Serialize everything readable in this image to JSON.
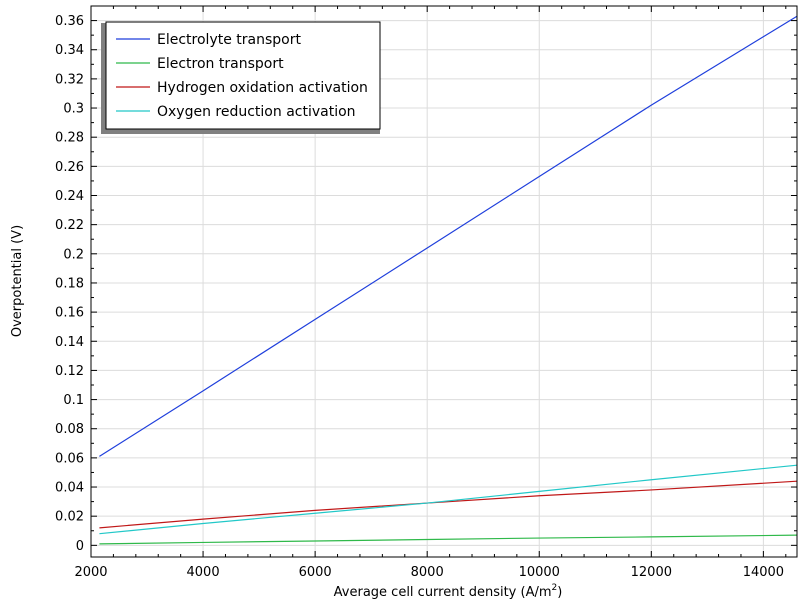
{
  "chart_data": {
    "type": "line",
    "title": "",
    "xlabel_main": "Average cell current density (A/m",
    "xlabel_sup": "2",
    "xlabel_tail": ")",
    "ylabel": "Overpotential (V)",
    "xlim": [
      2000,
      14600
    ],
    "ylim": [
      -0.008,
      0.37
    ],
    "xticks": [
      2000,
      4000,
      6000,
      8000,
      10000,
      12000,
      14000
    ],
    "yticks": [
      0,
      0.02,
      0.04,
      0.06,
      0.08,
      0.1,
      0.12,
      0.14,
      0.16,
      0.18,
      0.2,
      0.22,
      0.24,
      0.26,
      0.28,
      0.3,
      0.32,
      0.34,
      0.36
    ],
    "grid": true,
    "legend_position": "top-left",
    "series": [
      {
        "name": "Electrolyte transport",
        "color": "#1f3fdc",
        "x": [
          2150,
          4000,
          6000,
          8000,
          10000,
          12000,
          14600
        ],
        "y": [
          0.061,
          0.106,
          0.155,
          0.204,
          0.253,
          0.302,
          0.363
        ]
      },
      {
        "name": "Electron transport",
        "color": "#2fb94a",
        "x": [
          2150,
          4000,
          6000,
          8000,
          10000,
          12000,
          14600
        ],
        "y": [
          0.001,
          0.002,
          0.003,
          0.004,
          0.005,
          0.0058,
          0.007
        ]
      },
      {
        "name": "Hydrogen oxidation activation",
        "color": "#c01818",
        "x": [
          2150,
          4000,
          6000,
          8000,
          10000,
          12000,
          14600
        ],
        "y": [
          0.012,
          0.018,
          0.024,
          0.029,
          0.034,
          0.038,
          0.044
        ]
      },
      {
        "name": "Oxygen reduction activation",
        "color": "#22c8c8",
        "x": [
          2150,
          4000,
          6000,
          8000,
          10000,
          12000,
          14600
        ],
        "y": [
          0.008,
          0.015,
          0.022,
          0.029,
          0.037,
          0.045,
          0.055
        ]
      }
    ]
  }
}
